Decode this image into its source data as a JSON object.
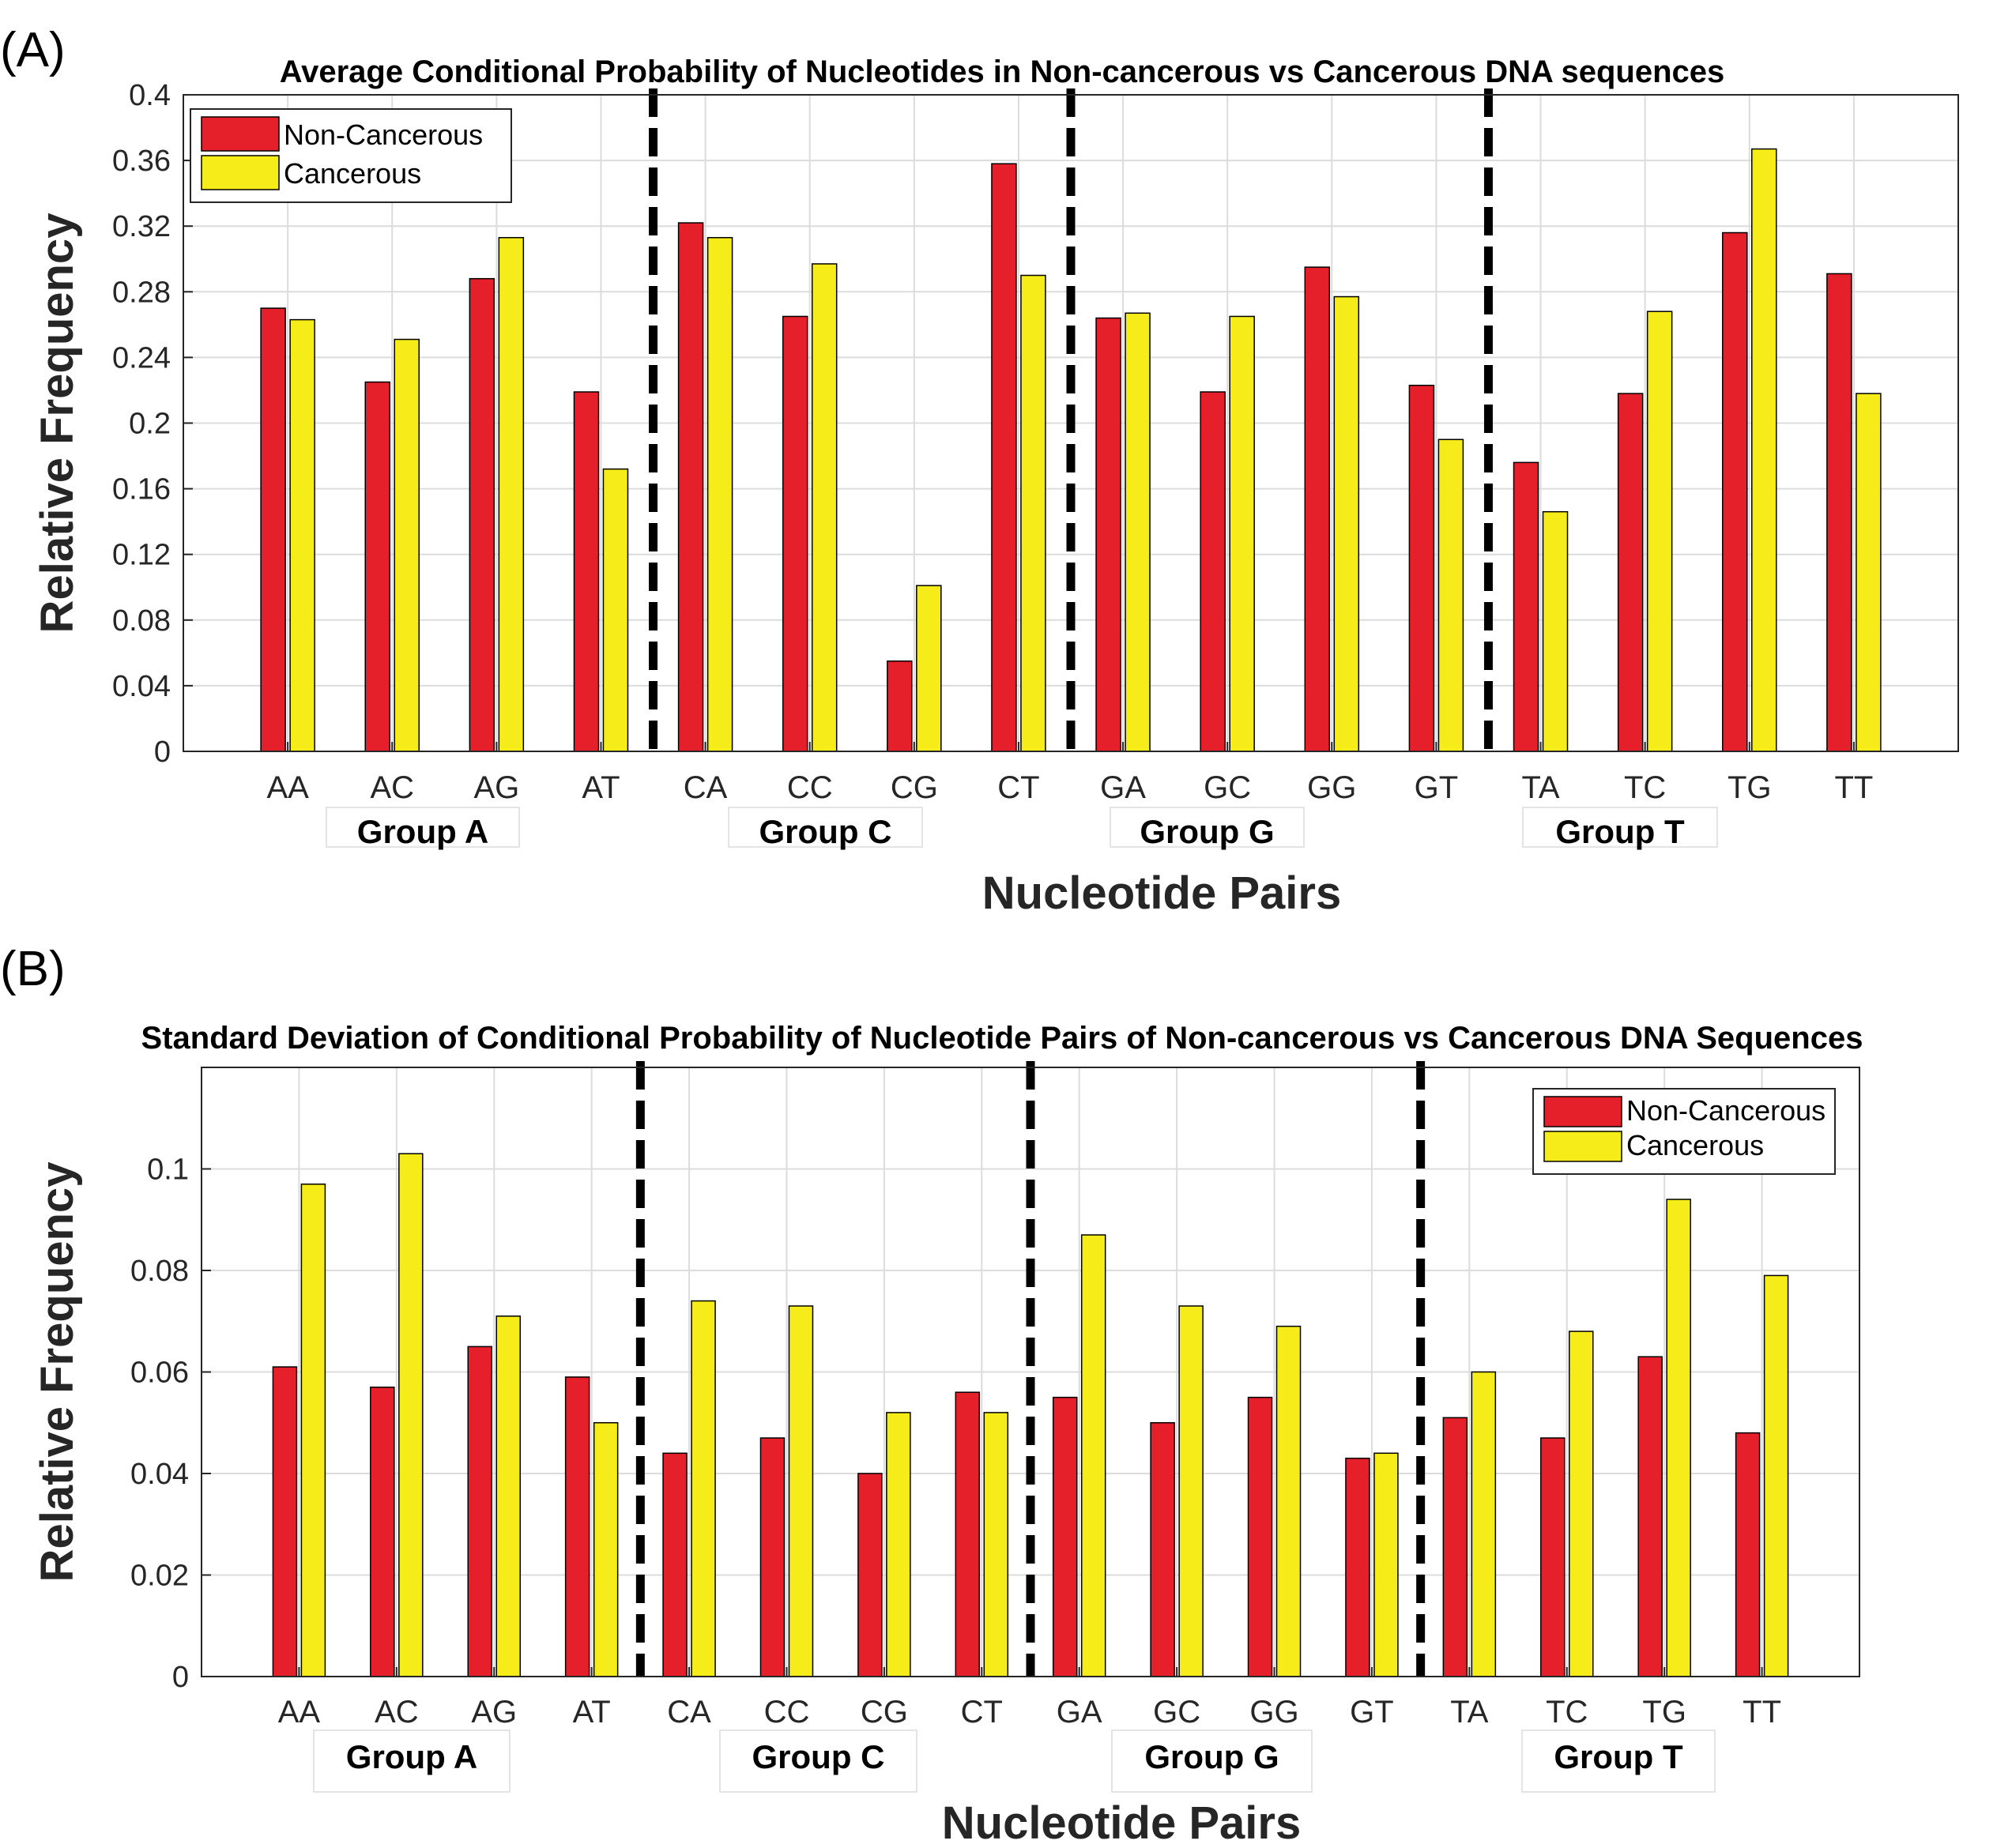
{
  "colors": {
    "non_cancerous": "#e6202a",
    "cancerous": "#f5ec1a",
    "grid": "#dcdcdc",
    "axis": "#262626"
  },
  "chart_data": [
    {
      "panel": "(A)",
      "type": "bar",
      "title": "Average Conditional Probability of Nucleotides in Non-cancerous vs Cancerous DNA sequences",
      "xlabel": "Nucleotide Pairs",
      "ylabel": "Relative Frequency",
      "ylim": [
        0,
        0.4
      ],
      "yticks": [
        "0",
        "0.04",
        "0.08",
        "0.12",
        "0.16",
        "0.2",
        "0.24",
        "0.28",
        "0.32",
        "0.36",
        "0.4"
      ],
      "grid": true,
      "legend_position": "top-left",
      "categories": [
        "AA",
        "AC",
        "AG",
        "AT",
        "CA",
        "CC",
        "CG",
        "CT",
        "GA",
        "GC",
        "GG",
        "GT",
        "TA",
        "TC",
        "TG",
        "TT"
      ],
      "groups": [
        "Group A",
        "Group C",
        "Group G",
        "Group T"
      ],
      "series": [
        {
          "name": "Non-Cancerous",
          "values": [
            0.27,
            0.225,
            0.288,
            0.219,
            0.322,
            0.265,
            0.055,
            0.358,
            0.264,
            0.219,
            0.295,
            0.223,
            0.176,
            0.218,
            0.316,
            0.291
          ]
        },
        {
          "name": "Cancerous",
          "values": [
            0.263,
            0.251,
            0.313,
            0.172,
            0.313,
            0.297,
            0.101,
            0.29,
            0.267,
            0.265,
            0.277,
            0.19,
            0.146,
            0.268,
            0.367,
            0.218
          ]
        }
      ]
    },
    {
      "panel": "(B)",
      "type": "bar",
      "title": "Standard Deviation of Conditional Probability of Nucleotide Pairs of Non-cancerous vs Cancerous DNA Sequences",
      "xlabel": "Nucleotide Pairs",
      "ylabel": "Relative Frequency",
      "ylim": [
        0,
        0.12
      ],
      "yticks": [
        "0",
        "0.02",
        "0.04",
        "0.06",
        "0.08",
        "0.1"
      ],
      "grid": true,
      "legend_position": "top-right",
      "categories": [
        "AA",
        "AC",
        "AG",
        "AT",
        "CA",
        "CC",
        "CG",
        "CT",
        "GA",
        "GC",
        "GG",
        "GT",
        "TA",
        "TC",
        "TG",
        "TT"
      ],
      "groups": [
        "Group A",
        "Group C",
        "Group G",
        "Group T"
      ],
      "series": [
        {
          "name": "Non-Cancerous",
          "values": [
            0.061,
            0.057,
            0.065,
            0.059,
            0.044,
            0.047,
            0.04,
            0.056,
            0.055,
            0.05,
            0.055,
            0.043,
            0.051,
            0.047,
            0.063,
            0.048
          ]
        },
        {
          "name": "Cancerous",
          "values": [
            0.097,
            0.103,
            0.071,
            0.05,
            0.074,
            0.073,
            0.052,
            0.052,
            0.087,
            0.073,
            0.069,
            0.044,
            0.06,
            0.068,
            0.094,
            0.079
          ]
        }
      ]
    }
  ]
}
